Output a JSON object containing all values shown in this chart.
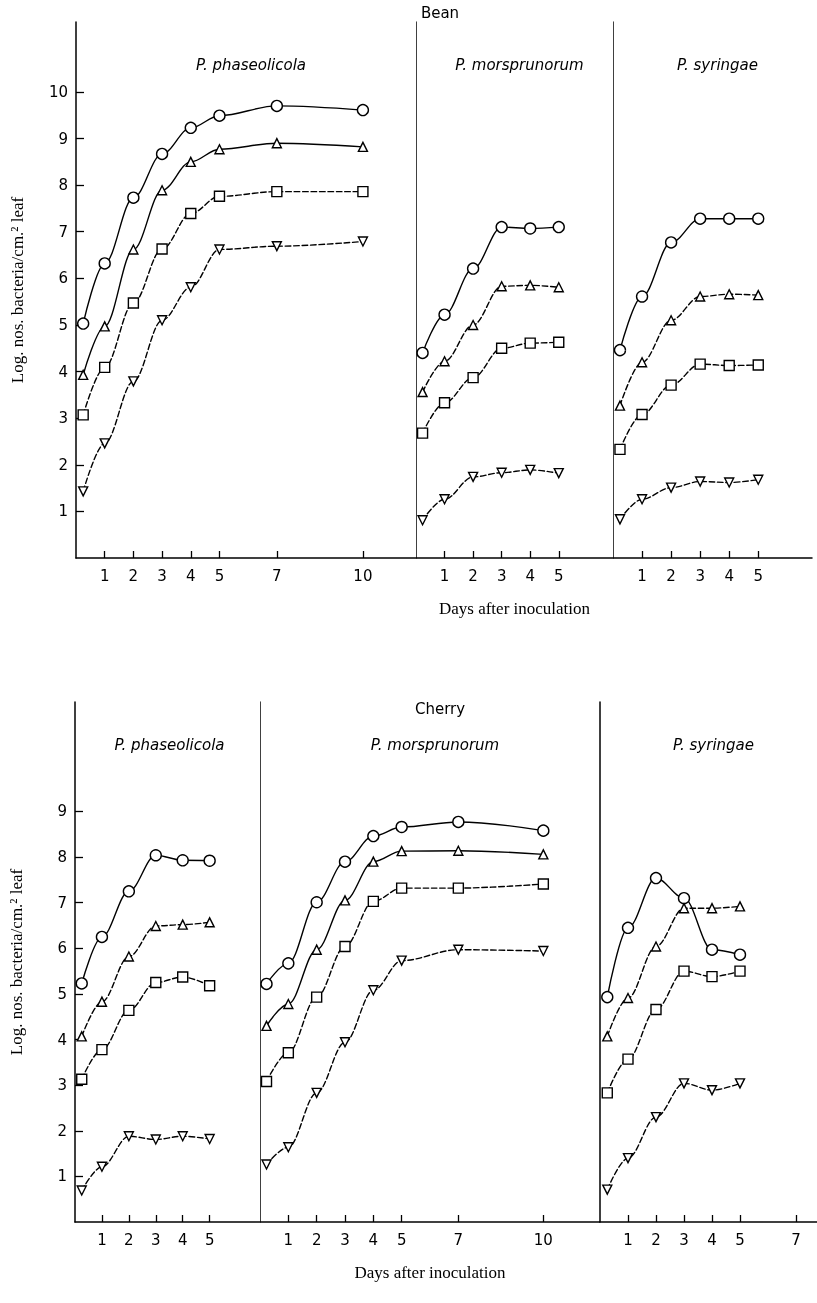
{
  "chart_data": [
    {
      "type": "line",
      "title": "P. phaseolicola",
      "annotations": [
        "Bean"
      ],
      "ylabel": "Log. nos. bacteria/cm.² leaf",
      "x": [
        0.25,
        1,
        2,
        3,
        4,
        5,
        7,
        10
      ],
      "xlim": [
        0,
        11.85
      ],
      "xticks": [
        1,
        2,
        3,
        4,
        5,
        7,
        10
      ],
      "ylim": [
        0,
        11.5
      ],
      "yticks": [
        1,
        2,
        3,
        4,
        5,
        6,
        7,
        8,
        9,
        10
      ],
      "series": [
        {
          "color": "#000000",
          "marker": "circle",
          "line_style": "solid",
          "values": [
            5.03,
            6.32,
            7.73,
            8.67,
            9.23,
            9.49,
            9.7,
            9.61
          ]
        },
        {
          "color": "#000000",
          "marker": "triangle",
          "line_style": "solid",
          "values": [
            3.93,
            4.97,
            6.62,
            7.89,
            8.5,
            8.77,
            8.9,
            8.82
          ]
        },
        {
          "color": "#000000",
          "marker": "square",
          "line_style": "dashed",
          "values": [
            3.07,
            4.09,
            5.47,
            6.63,
            7.39,
            7.76,
            7.86,
            7.86
          ]
        },
        {
          "color": "#000000",
          "marker": "triangle-down",
          "line_style": "dashed",
          "values": [
            1.43,
            2.46,
            3.79,
            5.1,
            5.81,
            6.62,
            6.69,
            6.79
          ]
        }
      ]
    },
    {
      "type": "line",
      "title": "P. morsprunorum",
      "xlabel": "Days after inoculation",
      "tick_labels": "x",
      "x": [
        0.23,
        1,
        2,
        3,
        4,
        5
      ],
      "xlim": [
        0,
        6.9
      ],
      "xticks": [
        1,
        2,
        3,
        4,
        5
      ],
      "ylim": [
        0,
        11.5
      ],
      "series": [
        {
          "color": "#000000",
          "marker": "circle",
          "line_style": "solid",
          "values": [
            4.4,
            5.22,
            6.21,
            7.1,
            7.07,
            7.1
          ]
        },
        {
          "color": "#000000",
          "marker": "triangle",
          "line_style": "dashed",
          "values": [
            3.56,
            4.22,
            5.0,
            5.83,
            5.85,
            5.81
          ]
        },
        {
          "color": "#000000",
          "marker": "square",
          "line_style": "dashed",
          "values": [
            2.68,
            3.33,
            3.87,
            4.5,
            4.61,
            4.63
          ]
        },
        {
          "color": "#000000",
          "marker": "triangle-down",
          "line_style": "dashed",
          "values": [
            0.81,
            1.26,
            1.74,
            1.83,
            1.89,
            1.82
          ]
        }
      ]
    },
    {
      "type": "line",
      "title": "P. syringae",
      "tick_labels": "x",
      "x": [
        0.24,
        1,
        2,
        3,
        4,
        5
      ],
      "xlim": [
        0,
        6.85
      ],
      "xticks": [
        1,
        2,
        3,
        4,
        5
      ],
      "ylim": [
        0,
        11.5
      ],
      "series": [
        {
          "color": "#000000",
          "marker": "circle",
          "line_style": "solid",
          "values": [
            4.46,
            5.61,
            6.77,
            7.28,
            7.28,
            7.28
          ]
        },
        {
          "color": "#000000",
          "marker": "triangle",
          "line_style": "dashed",
          "values": [
            3.27,
            4.2,
            5.1,
            5.61,
            5.66,
            5.64
          ]
        },
        {
          "color": "#000000",
          "marker": "square",
          "line_style": "dashed",
          "values": [
            2.33,
            3.08,
            3.71,
            4.16,
            4.13,
            4.14
          ]
        },
        {
          "color": "#000000",
          "marker": "triangle-down",
          "line_style": "dashed",
          "values": [
            0.83,
            1.26,
            1.51,
            1.64,
            1.62,
            1.68
          ]
        }
      ]
    },
    {
      "type": "line",
      "title": "P. phaseolicola",
      "annotations": [
        "Cherry"
      ],
      "ylabel": "Log. nos. bacteria/cm.² leaf",
      "x": [
        0.25,
        1,
        2,
        3,
        4,
        5
      ],
      "xlim": [
        0,
        6.87
      ],
      "xticks": [
        1,
        2,
        3,
        4,
        5
      ],
      "ylim": [
        0,
        11.4
      ],
      "yticks": [
        1,
        2,
        3,
        4,
        5,
        6,
        7,
        8,
        9
      ],
      "series": [
        {
          "color": "#000000",
          "marker": "circle",
          "line_style": "solid",
          "values": [
            5.23,
            6.25,
            7.25,
            8.04,
            7.93,
            7.92
          ]
        },
        {
          "color": "#000000",
          "marker": "triangle",
          "line_style": "dashed",
          "values": [
            4.07,
            4.83,
            5.82,
            6.49,
            6.52,
            6.57
          ]
        },
        {
          "color": "#000000",
          "marker": "square",
          "line_style": "dashed",
          "values": [
            3.13,
            3.78,
            4.64,
            5.25,
            5.37,
            5.18
          ]
        },
        {
          "color": "#000000",
          "marker": "triangle-down",
          "line_style": "dashed",
          "values": [
            0.69,
            1.21,
            1.88,
            1.81,
            1.88,
            1.82
          ]
        }
      ]
    },
    {
      "type": "line",
      "title": "P. morsprunorum",
      "xlabel": "Days after inoculation",
      "tick_labels": "x",
      "x": [
        0.23,
        1,
        2,
        3,
        4,
        5,
        7,
        10
      ],
      "xlim": [
        0,
        12
      ],
      "xticks": [
        1,
        2,
        3,
        4,
        5,
        7,
        10
      ],
      "ylim": [
        0,
        11.4
      ],
      "series": [
        {
          "color": "#000000",
          "marker": "circle",
          "line_style": "solid",
          "values": [
            5.22,
            5.67,
            7.01,
            7.9,
            8.46,
            8.66,
            8.77,
            8.58
          ]
        },
        {
          "color": "#000000",
          "marker": "triangle",
          "line_style": "solid",
          "values": [
            4.3,
            4.78,
            5.97,
            7.05,
            7.9,
            8.13,
            8.14,
            8.06
          ]
        },
        {
          "color": "#000000",
          "marker": "square",
          "line_style": "dashed",
          "values": [
            3.08,
            3.71,
            4.93,
            6.04,
            7.03,
            7.32,
            7.32,
            7.41
          ]
        },
        {
          "color": "#000000",
          "marker": "triangle-down",
          "line_style": "dashed",
          "values": [
            1.26,
            1.64,
            2.83,
            3.94,
            5.08,
            5.73,
            5.97,
            5.94
          ]
        }
      ]
    },
    {
      "type": "line",
      "title": "P. syringae",
      "tick_labels": "x",
      "x": [
        0.26,
        1,
        2,
        3,
        4,
        5
      ],
      "xlim": [
        0,
        7.75
      ],
      "xticks": [
        1,
        2,
        3,
        4,
        5,
        7
      ],
      "ylim": [
        0,
        11.4
      ],
      "series": [
        {
          "color": "#000000",
          "marker": "circle",
          "line_style": "solid",
          "values": [
            4.93,
            6.45,
            7.54,
            7.1,
            5.97,
            5.86
          ]
        },
        {
          "color": "#000000",
          "marker": "triangle",
          "line_style": "dashed",
          "values": [
            4.07,
            4.91,
            6.04,
            6.88,
            6.88,
            6.92
          ]
        },
        {
          "color": "#000000",
          "marker": "square",
          "line_style": "dashed",
          "values": [
            2.83,
            3.57,
            4.66,
            5.5,
            5.38,
            5.5
          ]
        },
        {
          "color": "#000000",
          "marker": "triangle-down",
          "line_style": "dashed",
          "values": [
            0.71,
            1.4,
            2.3,
            3.04,
            2.89,
            3.04
          ]
        }
      ]
    }
  ]
}
